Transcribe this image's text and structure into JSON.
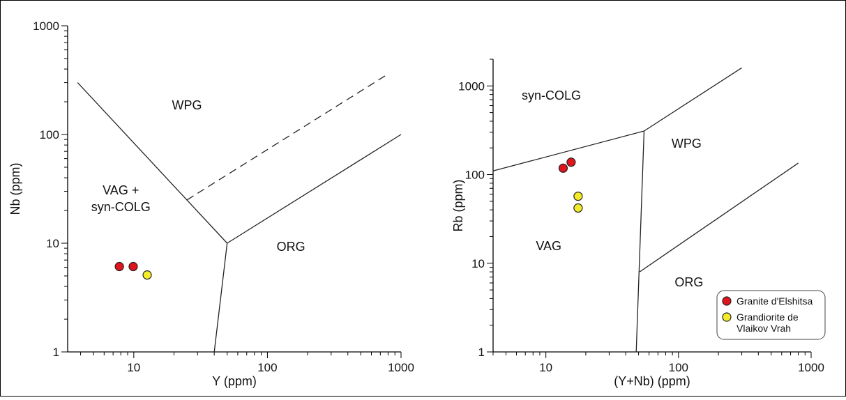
{
  "chart_data": [
    {
      "type": "scatter",
      "scale": "log-log",
      "xlabel": "Y (ppm)",
      "ylabel": "Nb (ppm)",
      "xlim": [
        3.2,
        1000
      ],
      "ylim": [
        1,
        1000
      ],
      "x_ticks": [
        "10",
        "100",
        "1000"
      ],
      "y_ticks": [
        "1",
        "10",
        "100",
        "1000"
      ],
      "grid": false,
      "boundaries": [
        {
          "style": "solid",
          "points": [
            [
              3.8,
              300
            ],
            [
              50,
              10
            ]
          ]
        },
        {
          "style": "solid",
          "points": [
            [
              50,
              10
            ],
            [
              40,
              1
            ]
          ]
        },
        {
          "style": "solid",
          "points": [
            [
              50,
              10
            ],
            [
              1000,
              100
            ]
          ]
        },
        {
          "style": "dashed",
          "points": [
            [
              25,
              25
            ],
            [
              800,
              360
            ]
          ]
        }
      ],
      "regions": [
        {
          "lines": [
            "WPG"
          ],
          "x": 25,
          "y": 170
        },
        {
          "lines": [
            "VAG +",
            "syn-COLG"
          ],
          "x": 8,
          "y": 28
        },
        {
          "lines": [
            "ORG"
          ],
          "x": 150,
          "y": 8.5
        }
      ],
      "series": [
        {
          "color": "#e0141c",
          "points": [
            [
              7.8,
              6.1
            ],
            [
              9.9,
              6.1
            ]
          ]
        },
        {
          "color": "#f4ec2a",
          "points": [
            [
              12.6,
              5.1
            ]
          ]
        }
      ]
    },
    {
      "type": "scatter",
      "scale": "log-log",
      "xlabel": "(Y+Nb) (ppm)",
      "ylabel": "Rb (ppm)",
      "xlim": [
        4,
        1000
      ],
      "ylim": [
        1,
        2000
      ],
      "x_ticks": [
        "10",
        "100",
        "1000"
      ],
      "y_ticks": [
        "1",
        "10",
        "100",
        "1000"
      ],
      "grid": false,
      "boundaries": [
        {
          "style": "solid",
          "points": [
            [
              4,
              110
            ],
            [
              55,
              310
            ]
          ]
        },
        {
          "style": "solid",
          "points": [
            [
              55,
              310
            ],
            [
              300,
              1600
            ]
          ]
        },
        {
          "style": "solid",
          "points": [
            [
              55,
              310
            ],
            [
              48,
              1
            ]
          ]
        },
        {
          "style": "solid",
          "points": [
            [
              51,
              8
            ],
            [
              800,
              135
            ]
          ]
        }
      ],
      "regions": [
        {
          "lines": [
            "syn-COLG"
          ],
          "x": 11,
          "y": 700
        },
        {
          "lines": [
            "WPG"
          ],
          "x": 115,
          "y": 200
        },
        {
          "lines": [
            "VAG"
          ],
          "x": 10.5,
          "y": 14
        },
        {
          "lines": [
            "ORG"
          ],
          "x": 120,
          "y": 5.5
        }
      ],
      "series": [
        {
          "color": "#e0141c",
          "points": [
            [
              13.5,
              118
            ],
            [
              15.5,
              138
            ]
          ]
        },
        {
          "color": "#f4ec2a",
          "points": [
            [
              17.5,
              57
            ],
            [
              17.5,
              42
            ]
          ]
        }
      ],
      "legend": {
        "placement": "bottom-right",
        "entries": [
          {
            "color": "#e0141c",
            "lines": [
              "Granite d'Elshitsa"
            ]
          },
          {
            "color": "#f4ec2a",
            "lines": [
              "Grandiorite de",
              "Vlaikov Vrah"
            ]
          }
        ]
      }
    }
  ]
}
